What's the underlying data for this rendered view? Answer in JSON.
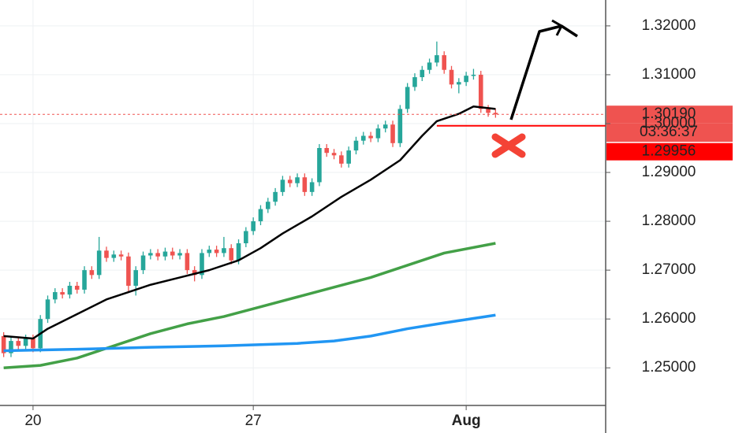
{
  "chart_data": {
    "type": "candlestick",
    "xlim": [
      -0.5,
      82
    ],
    "xticks": [
      {
        "value": 4,
        "label": "20"
      },
      {
        "value": 34,
        "label": "27"
      },
      {
        "value": 63,
        "label": "Aug"
      }
    ],
    "ylim": [
      1.2423,
      1.3253
    ],
    "yticks": [
      {
        "value": 1.25,
        "label": "1.25000"
      },
      {
        "value": 1.26,
        "label": "1.26000"
      },
      {
        "value": 1.27,
        "label": "1.27000"
      },
      {
        "value": 1.28,
        "label": "1.28000"
      },
      {
        "value": 1.29,
        "label": "1.29000"
      },
      {
        "value": 1.3,
        "label": "1.30000"
      },
      {
        "value": 1.31,
        "label": "1.31000"
      },
      {
        "value": 1.32,
        "label": "1.32000"
      }
    ],
    "grid": true,
    "up_color": "#26a69a",
    "down_color": "#ef5350",
    "open": [
      1.2565,
      1.253,
      1.2555,
      1.2545,
      1.256,
      1.254,
      1.26,
      1.264,
      1.2655,
      1.265,
      1.2668,
      1.266,
      1.27,
      1.269,
      1.274,
      1.2725,
      1.2732,
      1.2728,
      1.2668,
      1.27,
      1.273,
      1.2735,
      1.2728,
      1.2738,
      1.273,
      1.2735,
      1.27,
      1.269,
      1.2735,
      1.2742,
      1.2735,
      1.2745,
      1.272,
      1.2755,
      1.278,
      1.28,
      1.2825,
      1.284,
      1.286,
      1.2885,
      1.2878,
      1.289,
      1.286,
      1.288,
      1.295,
      1.294,
      1.2935,
      1.2918,
      1.2945,
      1.2965,
      1.2975,
      1.297,
      1.299,
      1.2998,
      1.296,
      1.303,
      1.3075,
      1.3095,
      1.311,
      1.3125,
      1.314,
      1.311,
      1.308,
      1.3085,
      1.3098,
      1.31,
      1.303,
      1.3022
    ],
    "high": [
      1.2573,
      1.2563,
      1.2563,
      1.2568,
      1.2568,
      1.2608,
      1.2648,
      1.2663,
      1.2663,
      1.2676,
      1.2676,
      1.2708,
      1.2708,
      1.2768,
      1.2748,
      1.274,
      1.274,
      1.2736,
      1.2708,
      1.2738,
      1.2743,
      1.2743,
      1.2746,
      1.2746,
      1.2743,
      1.2743,
      1.2708,
      1.2743,
      1.275,
      1.275,
      1.2768,
      1.2753,
      1.2763,
      1.2788,
      1.2808,
      1.2833,
      1.2848,
      1.2868,
      1.2893,
      1.2893,
      1.2898,
      1.2898,
      1.2888,
      1.2958,
      1.2958,
      1.2948,
      1.2943,
      1.2953,
      1.2973,
      1.2983,
      1.2983,
      1.2998,
      1.3006,
      1.3006,
      1.3038,
      1.3083,
      1.3103,
      1.3118,
      1.3133,
      1.3168,
      1.3148,
      1.3118,
      1.3093,
      1.3106,
      1.3112,
      1.3108,
      1.3038,
      1.303
    ],
    "low": [
      1.2522,
      1.2522,
      1.2537,
      1.2537,
      1.2532,
      1.2532,
      1.2592,
      1.2632,
      1.2642,
      1.2642,
      1.2652,
      1.2652,
      1.2682,
      1.2682,
      1.2717,
      1.2717,
      1.272,
      1.2655,
      1.2648,
      1.2692,
      1.2722,
      1.272,
      1.272,
      1.2722,
      1.2722,
      1.2692,
      1.2677,
      1.2682,
      1.2727,
      1.2727,
      1.2727,
      1.2712,
      1.2712,
      1.2747,
      1.2772,
      1.2792,
      1.2817,
      1.2832,
      1.2852,
      1.287,
      1.287,
      1.2852,
      1.2852,
      1.2872,
      1.2932,
      1.2927,
      1.291,
      1.291,
      1.2937,
      1.2957,
      1.2962,
      1.2962,
      1.2982,
      1.2952,
      1.2952,
      1.3022,
      1.3067,
      1.3087,
      1.3102,
      1.3117,
      1.3102,
      1.3072,
      1.3062,
      1.3077,
      1.309,
      1.3022,
      1.3014,
      1.3012
    ],
    "close": [
      1.253,
      1.2555,
      1.2545,
      1.256,
      1.254,
      1.26,
      1.264,
      1.2655,
      1.265,
      1.2668,
      1.266,
      1.27,
      1.269,
      1.274,
      1.2725,
      1.2732,
      1.2728,
      1.2668,
      1.27,
      1.273,
      1.2735,
      1.2728,
      1.2738,
      1.273,
      1.2735,
      1.27,
      1.269,
      1.2735,
      1.2742,
      1.2735,
      1.2745,
      1.272,
      1.2755,
      1.278,
      1.28,
      1.2825,
      1.284,
      1.286,
      1.2885,
      1.2878,
      1.289,
      1.286,
      1.288,
      1.295,
      1.294,
      1.2935,
      1.2918,
      1.2945,
      1.2965,
      1.2975,
      1.297,
      1.299,
      1.2998,
      1.296,
      1.303,
      1.3075,
      1.3095,
      1.311,
      1.3125,
      1.314,
      1.311,
      1.308,
      1.3085,
      1.3098,
      1.31,
      1.303,
      1.3022,
      1.3019
    ],
    "lines": [
      {
        "color": "#000000",
        "x": [
          0,
          4,
          6,
          10,
          14,
          17,
          20,
          24,
          28,
          32,
          35,
          38,
          42,
          46,
          50,
          54,
          57,
          59,
          62,
          64,
          67
        ],
        "values": [
          1.2565,
          1.256,
          1.258,
          1.261,
          1.264,
          1.2655,
          1.267,
          1.2685,
          1.27,
          1.272,
          1.2745,
          1.2775,
          1.281,
          1.285,
          1.2885,
          1.2925,
          1.2975,
          1.3005,
          1.302,
          1.3035,
          1.303
        ]
      },
      {
        "color": "#43a047",
        "x": [
          0,
          5,
          10,
          15,
          20,
          25,
          30,
          35,
          40,
          45,
          50,
          55,
          60,
          67
        ],
        "values": [
          1.25,
          1.2505,
          1.252,
          1.2545,
          1.257,
          1.259,
          1.2605,
          1.2625,
          1.2645,
          1.2665,
          1.2685,
          1.271,
          1.2735,
          1.2755
        ]
      },
      {
        "color": "#2196f3",
        "x": [
          0,
          10,
          20,
          30,
          40,
          45,
          50,
          55,
          60,
          67
        ],
        "values": [
          1.2535,
          1.2538,
          1.2542,
          1.2545,
          1.255,
          1.2555,
          1.2565,
          1.258,
          1.2592,
          1.2608
        ]
      }
    ],
    "price_label": {
      "value": 1.3019,
      "label": "1.30190"
    },
    "countdown": "03:36:37",
    "level": {
      "value": 1.29956,
      "label": "1.29956",
      "from_x": 59
    }
  }
}
